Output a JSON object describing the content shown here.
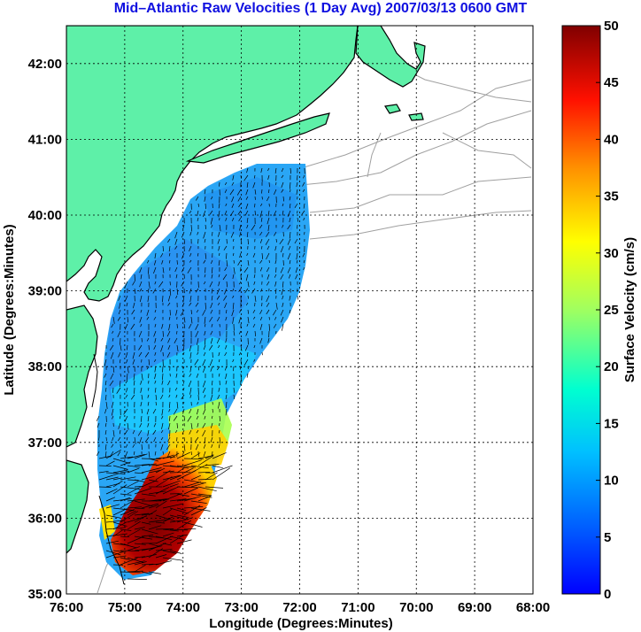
{
  "title": "Mid–Atlantic Raw Velocities (1 Day Avg) 2007/03/13 0600 GMT",
  "axes": {
    "xlabel": "Longitude (Degrees:Minutes)",
    "ylabel": "Latitude (Degrees:Minutes)",
    "x_ticks": [
      "76:00",
      "75:00",
      "74:00",
      "73:00",
      "72:00",
      "71:00",
      "70:00",
      "69:00",
      "68:00"
    ],
    "y_ticks": [
      "35:00",
      "36:00",
      "37:00",
      "38:00",
      "39:00",
      "40:00",
      "41:00",
      "42:00"
    ],
    "lon_range": [
      -76,
      -68
    ],
    "lat_range": [
      35,
      42.5
    ]
  },
  "colorbar": {
    "label": "Surface Velocity (cm/s)",
    "ticks": [
      "0",
      "5",
      "10",
      "15",
      "20",
      "25",
      "30",
      "35",
      "40",
      "45",
      "50"
    ],
    "range": [
      0,
      50
    ],
    "colormap": "jet"
  },
  "colors": {
    "land": "#5ef0a8",
    "coastline": "#000000",
    "bathymetry": "#a0a0a0",
    "grid": "#000000",
    "title": "#1010e0"
  }
}
